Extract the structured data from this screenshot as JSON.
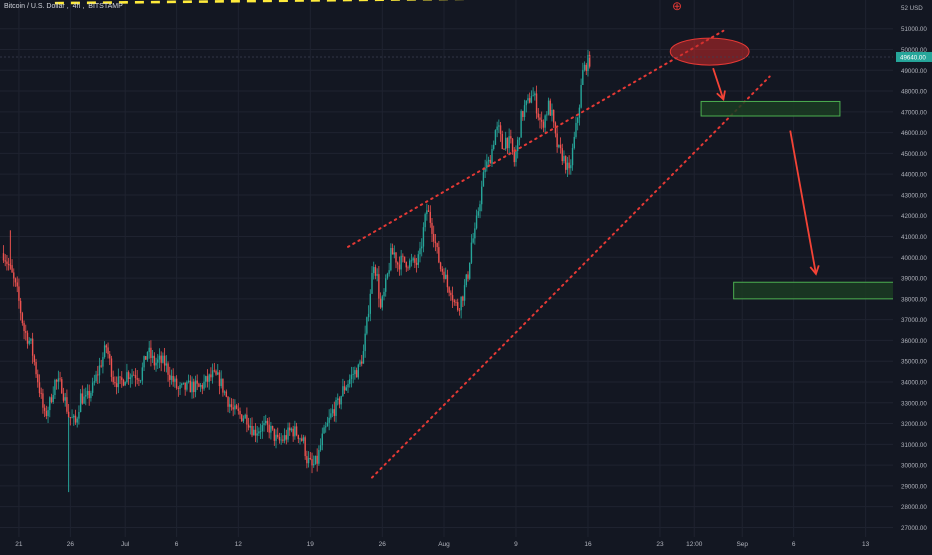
{
  "header": {
    "symbol": "Bitcoin / U.S. Dollar",
    "interval": "4h",
    "exchange": "BITSTAMP"
  },
  "axis": {
    "currency_label": "USD"
  },
  "colors": {
    "background": "#131722",
    "up_candle": "#26a69a",
    "down_candle": "#ef5350",
    "channel_line": "#e53935",
    "resistance_line": "#ffeb3b",
    "target_zone_fill": "#1b3b22",
    "target_zone_border": "#4caf50",
    "price_badge": "#26a69a",
    "axis_text": "#b2b5be"
  },
  "chart_data": {
    "type": "candlestick",
    "title": "Bitcoin / U.S. Dollar, 4h, BITSTAMP",
    "xlabel": "",
    "ylabel": "USD",
    "ylim": [
      26700,
      52300
    ],
    "y_ticks": [
      27000,
      28000,
      29000,
      30000,
      31000,
      32000,
      33000,
      34000,
      35000,
      36000,
      37000,
      38000,
      39000,
      40000,
      41000,
      42000,
      43000,
      44000,
      45000,
      46000,
      47000,
      48000,
      49000,
      50000,
      51000
    ],
    "y_tick_labels": [
      "27000.00",
      "28000.00",
      "29000.00",
      "30000.00",
      "31000.00",
      "32000.00",
      "33000.00",
      "34000.00",
      "35000.00",
      "36000.00",
      "37000.00",
      "38000.00",
      "39000.00",
      "40000.00",
      "41000.00",
      "42000.00",
      "43000.00",
      "44000.00",
      "45000.00",
      "46000.00",
      "47000.00",
      "48000.00",
      "49000.00",
      "50000.00",
      "51000.00"
    ],
    "y_top_label": "52 USD",
    "x_ticks": [
      {
        "label": "21",
        "bar": 9
      },
      {
        "label": "26",
        "bar": 39
      },
      {
        "label": "Jul",
        "bar": 71
      },
      {
        "label": "6",
        "bar": 101
      },
      {
        "label": "12",
        "bar": 137
      },
      {
        "label": "19",
        "bar": 179
      },
      {
        "label": "26",
        "bar": 221
      },
      {
        "label": "Aug",
        "bar": 257
      },
      {
        "label": "9",
        "bar": 299
      },
      {
        "label": "16",
        "bar": 341
      },
      {
        "label": "23",
        "bar": 383
      },
      {
        "label": "12:00",
        "bar": 403
      },
      {
        "label": "Sep",
        "bar": 431
      },
      {
        "label": "6",
        "bar": 461
      },
      {
        "label": "13",
        "bar": 503
      }
    ],
    "bars_total": 378,
    "anchors": [
      [
        0,
        40200
      ],
      [
        4,
        39400
      ],
      [
        8,
        38300
      ],
      [
        12,
        36500
      ],
      [
        16,
        35800
      ],
      [
        20,
        34100
      ],
      [
        24,
        32300
      ],
      [
        27,
        33000
      ],
      [
        30,
        34000
      ],
      [
        34,
        33800
      ],
      [
        38,
        32400
      ],
      [
        42,
        32000
      ],
      [
        45,
        33300
      ],
      [
        48,
        33100
      ],
      [
        52,
        33700
      ],
      [
        56,
        34700
      ],
      [
        60,
        35700
      ],
      [
        64,
        34200
      ],
      [
        68,
        33900
      ],
      [
        72,
        34400
      ],
      [
        76,
        34400
      ],
      [
        80,
        34300
      ],
      [
        84,
        35500
      ],
      [
        88,
        34900
      ],
      [
        91,
        35000
      ],
      [
        94,
        34900
      ],
      [
        98,
        34200
      ],
      [
        102,
        33600
      ],
      [
        106,
        33700
      ],
      [
        110,
        33800
      ],
      [
        114,
        33700
      ],
      [
        118,
        34000
      ],
      [
        122,
        34300
      ],
      [
        126,
        34100
      ],
      [
        130,
        33300
      ],
      [
        134,
        32600
      ],
      [
        138,
        32400
      ],
      [
        142,
        32300
      ],
      [
        146,
        31600
      ],
      [
        150,
        31800
      ],
      [
        155,
        31800
      ],
      [
        160,
        31100
      ],
      [
        164,
        31300
      ],
      [
        168,
        31700
      ],
      [
        172,
        31500
      ],
      [
        175,
        31100
      ],
      [
        177,
        30300
      ],
      [
        180,
        29900
      ],
      [
        183,
        30200
      ],
      [
        186,
        31300
      ],
      [
        189,
        31900
      ],
      [
        192,
        32600
      ],
      [
        195,
        32900
      ],
      [
        198,
        33600
      ],
      [
        201,
        34000
      ],
      [
        204,
        34400
      ],
      [
        207,
        34600
      ],
      [
        210,
        35400
      ],
      [
        212,
        36800
      ],
      [
        214,
        38400
      ],
      [
        216,
        39800
      ],
      [
        218,
        39000
      ],
      [
        220,
        37500
      ],
      [
        222,
        38200
      ],
      [
        224,
        39100
      ],
      [
        226,
        40100
      ],
      [
        228,
        40200
      ],
      [
        230,
        39700
      ],
      [
        232,
        39800
      ],
      [
        235,
        39800
      ],
      [
        238,
        39700
      ],
      [
        241,
        39700
      ],
      [
        243,
        40100
      ],
      [
        245,
        41300
      ],
      [
        247,
        42300
      ],
      [
        249,
        41800
      ],
      [
        251,
        41100
      ],
      [
        253,
        40200
      ],
      [
        255,
        39500
      ],
      [
        257,
        39300
      ],
      [
        259,
        38600
      ],
      [
        261,
        38500
      ],
      [
        263,
        37800
      ],
      [
        265,
        37600
      ],
      [
        268,
        38200
      ],
      [
        271,
        39200
      ],
      [
        273,
        40700
      ],
      [
        275,
        41100
      ],
      [
        277,
        42300
      ],
      [
        279,
        43300
      ],
      [
        281,
        44400
      ],
      [
        283,
        44500
      ],
      [
        285,
        45200
      ],
      [
        287,
        46100
      ],
      [
        289,
        46100
      ],
      [
        291,
        45300
      ],
      [
        293,
        45700
      ],
      [
        296,
        45400
      ],
      [
        298,
        44600
      ],
      [
        300,
        45500
      ],
      [
        302,
        46700
      ],
      [
        304,
        47200
      ],
      [
        306,
        47400
      ],
      [
        308,
        47900
      ],
      [
        310,
        47600
      ],
      [
        312,
        46900
      ],
      [
        314,
        46300
      ],
      [
        316,
        46800
      ],
      [
        318,
        47300
      ],
      [
        320,
        46800
      ],
      [
        322,
        45700
      ],
      [
        324,
        45100
      ],
      [
        326,
        44900
      ],
      [
        328,
        44500
      ],
      [
        330,
        44000
      ],
      [
        332,
        45100
      ],
      [
        334,
        46200
      ],
      [
        336,
        47400
      ],
      [
        338,
        48900
      ],
      [
        340,
        49300
      ],
      [
        342,
        49500
      ]
    ],
    "last_price": 49640,
    "last_price_label": "49640.00",
    "resistance": {
      "price": 52400,
      "from_bar": 30,
      "to_bar": 474,
      "style": "dashed"
    },
    "channel_upper": {
      "from": [
        201,
        40500
      ],
      "to": [
        420,
        50900
      ],
      "style": "dotted"
    },
    "channel_lower": {
      "from": [
        215,
        29400
      ],
      "to": [
        447,
        48700
      ],
      "style": "dotted"
    },
    "reversal_ellipse": {
      "center": [
        412,
        49900
      ],
      "rx_bars": 23,
      "ry_price": 650
    },
    "target_zones": [
      {
        "from_bar": 407,
        "to_bar": 488,
        "high": 47500,
        "low": 46800
      },
      {
        "from_bar": 426,
        "to_bar": 553,
        "high": 38800,
        "low": 38000
      }
    ],
    "arrows": [
      {
        "from": [
          414,
          49100
        ],
        "to": [
          420,
          47600
        ]
      },
      {
        "from": [
          459,
          46100
        ],
        "to": [
          474,
          39200
        ]
      }
    ],
    "status_glyph": "⊕"
  }
}
